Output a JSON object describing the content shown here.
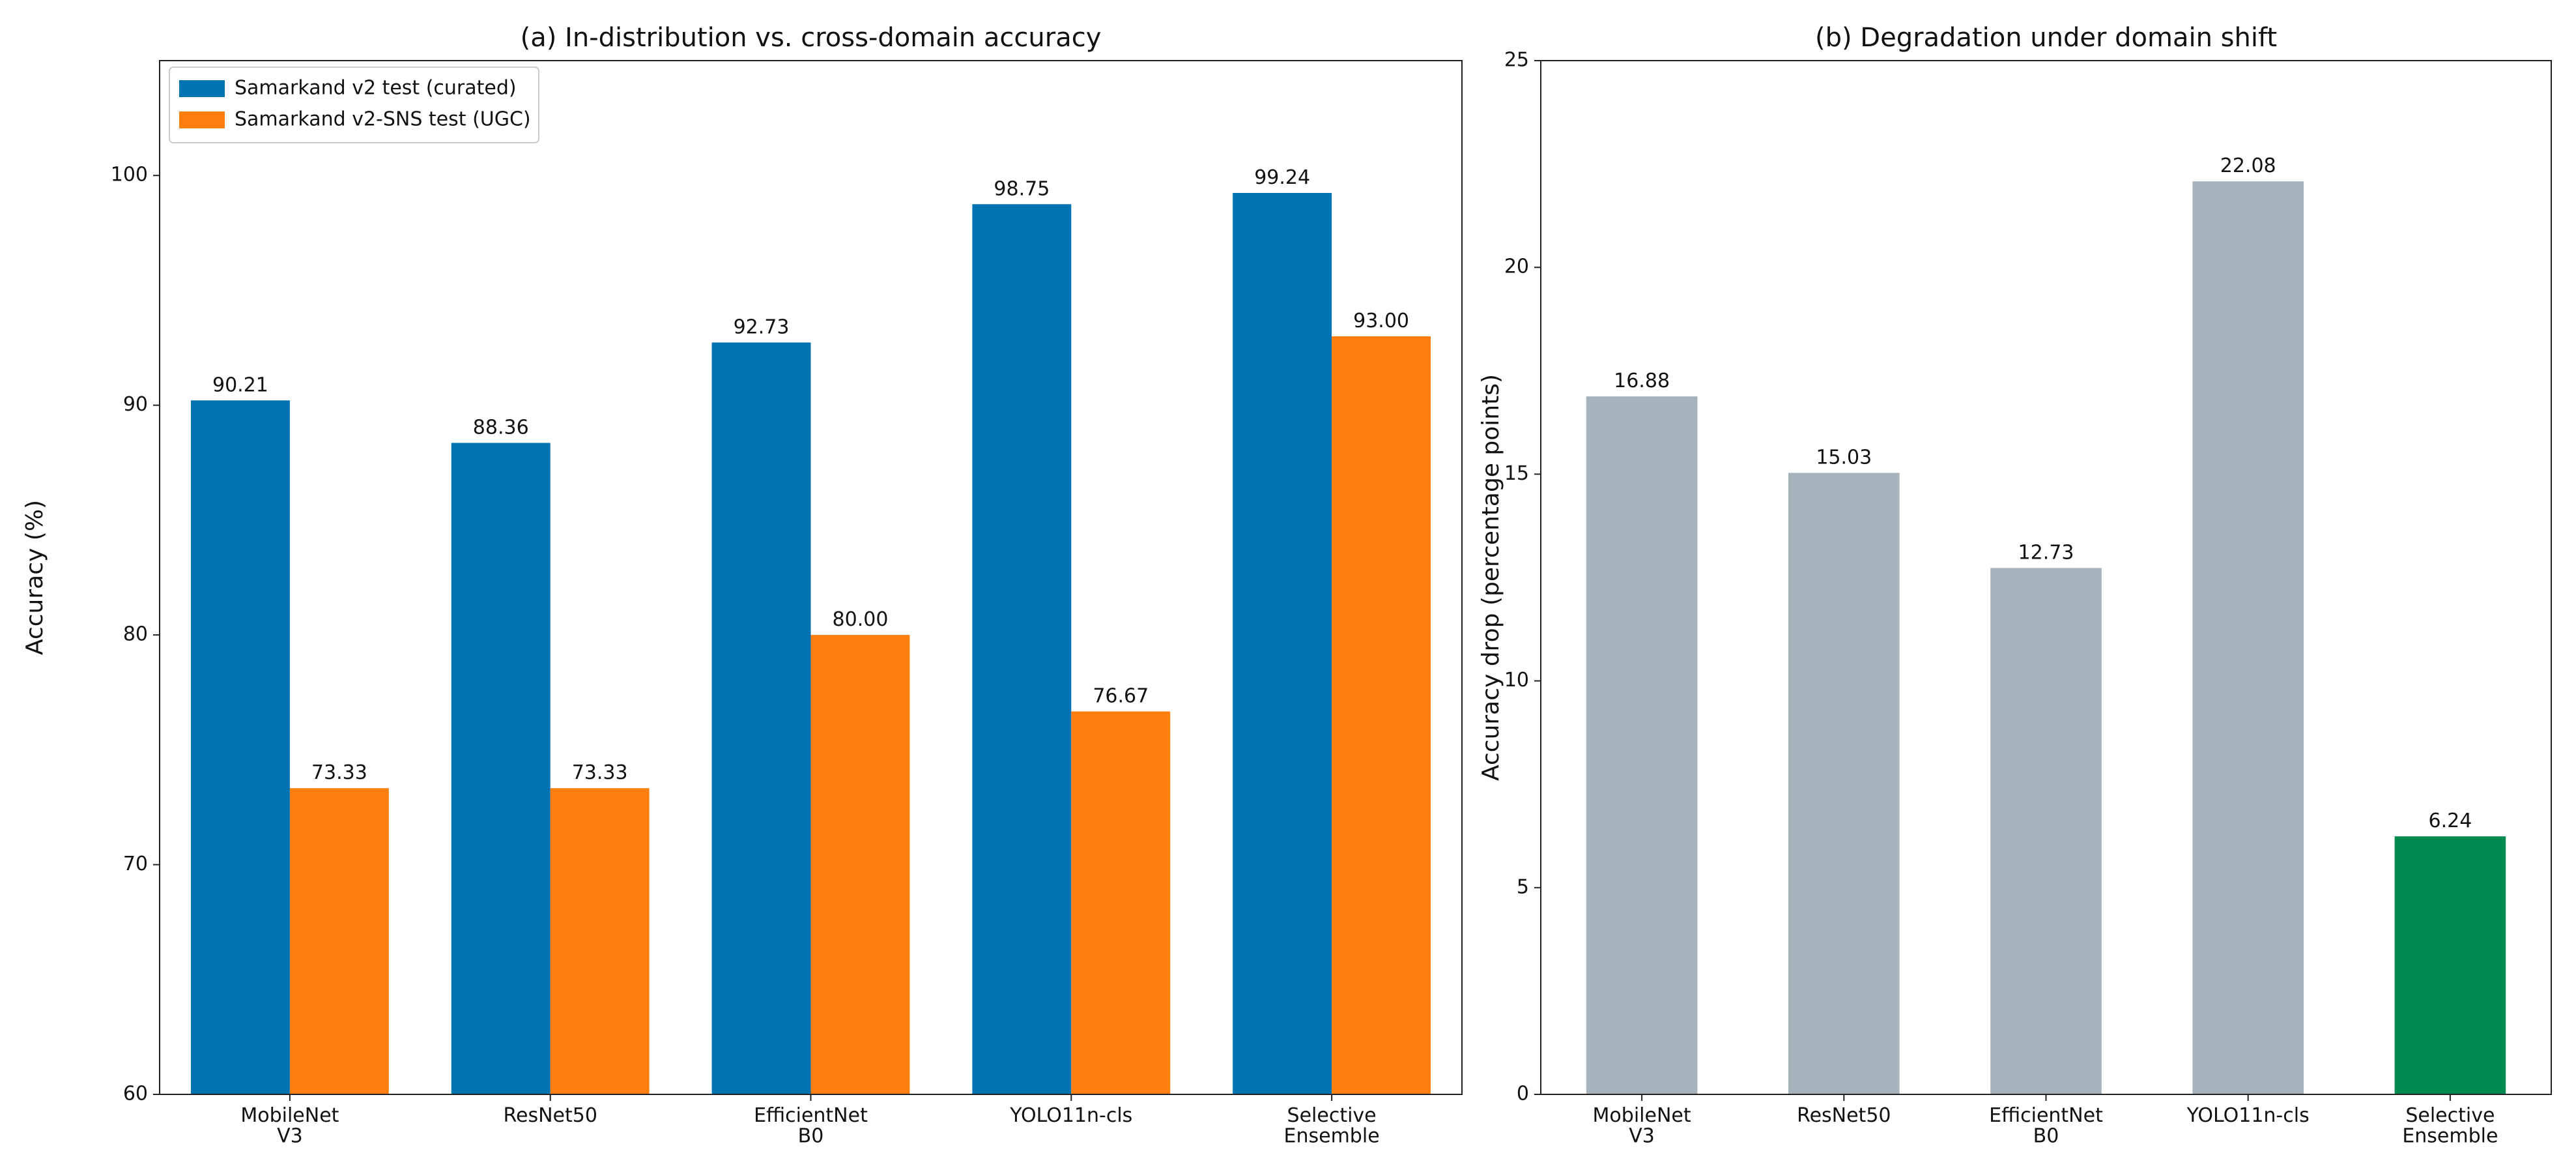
{
  "chart_data": [
    {
      "type": "bar",
      "title": "(a) In-distribution vs. cross-domain accuracy",
      "ylabel": "Accuracy (%)",
      "categories": [
        "MobileNet\nV3",
        "ResNet50",
        "EfficientNet\nB0",
        "YOLO11n-cls",
        "Selective\nEnsemble"
      ],
      "series": [
        {
          "name": "Samarkand v2 test (curated)",
          "color": "#0173b2",
          "values": [
            90.21,
            88.36,
            92.73,
            98.75,
            99.24
          ],
          "value_labels": [
            "90.21",
            "88.36",
            "92.73",
            "98.75",
            "99.24"
          ]
        },
        {
          "name": "Samarkand v2-SNS test (UGC)",
          "color": "#fe7f0e",
          "values": [
            73.33,
            73.33,
            80,
            76.67,
            93
          ],
          "value_labels": [
            "73.33",
            "73.33",
            "80.00",
            "76.67",
            "93.00"
          ]
        }
      ],
      "ylim": [
        60,
        105
      ],
      "yticks": [
        60,
        70,
        80,
        90,
        100
      ],
      "legend": "upper left"
    },
    {
      "type": "bar",
      "title": "(b) Degradation under domain shift",
      "ylabel": "Accuracy drop (percentage points)",
      "categories": [
        "MobileNet\nV3",
        "ResNet50",
        "EfficientNet\nB0",
        "YOLO11n-cls",
        "Selective\nEnsemble"
      ],
      "values": [
        16.88,
        15.03,
        12.73,
        22.08,
        6.24
      ],
      "value_labels": [
        "16.88",
        "15.03",
        "12.73",
        "22.08",
        "6.24"
      ],
      "colors": [
        "#a6b3bd",
        "#a6b3bd",
        "#a6b3bd",
        "#a6b3bd",
        "#018a4f"
      ],
      "ylim": [
        0,
        25
      ],
      "yticks": [
        0,
        5,
        10,
        15,
        20,
        25
      ]
    }
  ]
}
